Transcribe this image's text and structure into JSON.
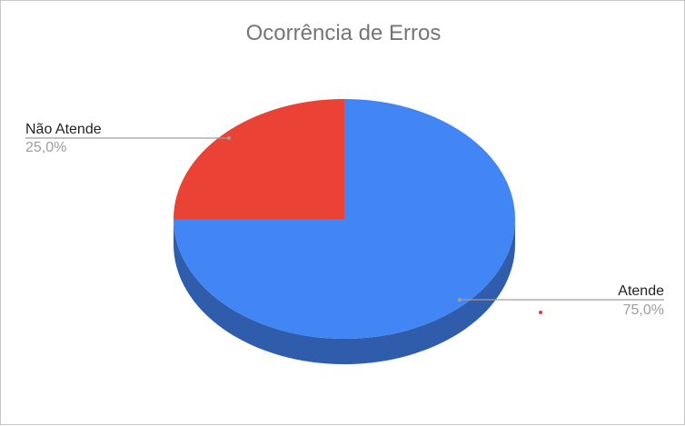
{
  "chart_data": {
    "type": "pie",
    "title": "Ocorrência de Erros",
    "three_d": true,
    "slices": [
      {
        "label": "Atende",
        "value": 75.0,
        "value_label": "75,0%",
        "color": "#4285f4",
        "side_color": "#2f5dab"
      },
      {
        "label": "Não Atende",
        "value": 25.0,
        "value_label": "25,0%",
        "color": "#ea4335",
        "side_color": "#a52f25"
      }
    ]
  }
}
